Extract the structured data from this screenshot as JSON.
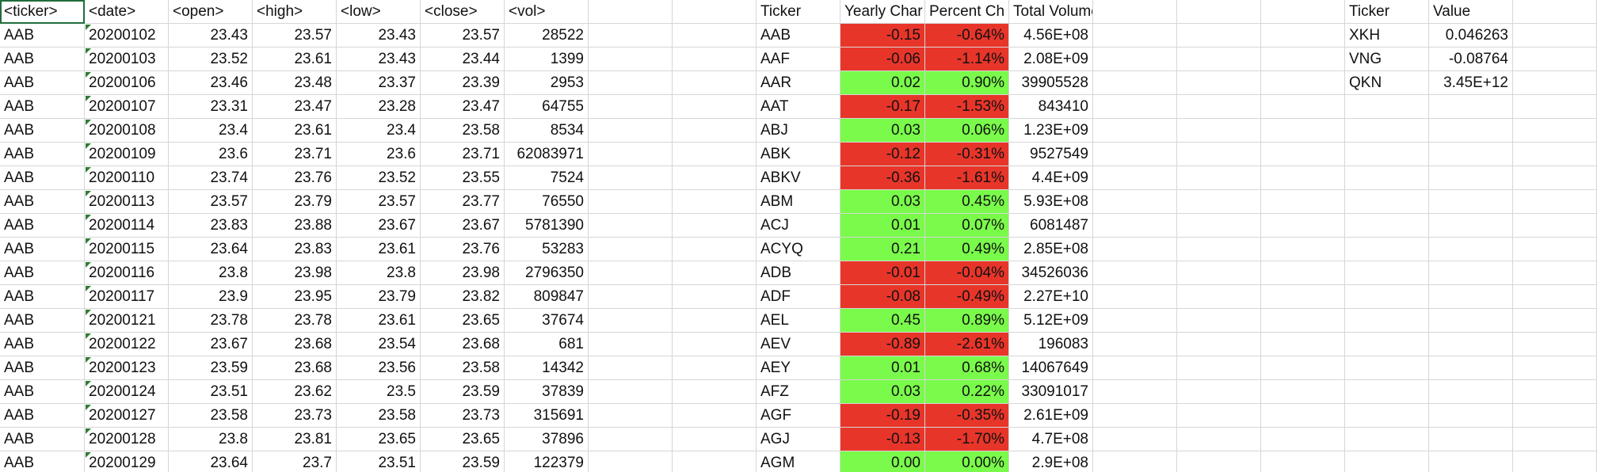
{
  "sheet": {
    "raw_headers": [
      "<ticker>",
      "<date>",
      "<open>",
      "<high>",
      "<low>",
      "<close>",
      "<vol>"
    ],
    "raw_rows": [
      [
        "AAB",
        "20200102",
        "23.43",
        "23.57",
        "23.43",
        "23.57",
        "28522"
      ],
      [
        "AAB",
        "20200103",
        "23.52",
        "23.61",
        "23.43",
        "23.44",
        "1399"
      ],
      [
        "AAB",
        "20200106",
        "23.46",
        "23.48",
        "23.37",
        "23.39",
        "2953"
      ],
      [
        "AAB",
        "20200107",
        "23.31",
        "23.47",
        "23.28",
        "23.47",
        "64755"
      ],
      [
        "AAB",
        "20200108",
        "23.4",
        "23.61",
        "23.4",
        "23.58",
        "8534"
      ],
      [
        "AAB",
        "20200109",
        "23.6",
        "23.71",
        "23.6",
        "23.71",
        "62083971"
      ],
      [
        "AAB",
        "20200110",
        "23.74",
        "23.76",
        "23.52",
        "23.55",
        "7524"
      ],
      [
        "AAB",
        "20200113",
        "23.57",
        "23.79",
        "23.57",
        "23.77",
        "76550"
      ],
      [
        "AAB",
        "20200114",
        "23.83",
        "23.88",
        "23.67",
        "23.67",
        "5781390"
      ],
      [
        "AAB",
        "20200115",
        "23.64",
        "23.83",
        "23.61",
        "23.76",
        "53283"
      ],
      [
        "AAB",
        "20200116",
        "23.8",
        "23.98",
        "23.8",
        "23.98",
        "2796350"
      ],
      [
        "AAB",
        "20200117",
        "23.9",
        "23.95",
        "23.79",
        "23.82",
        "809847"
      ],
      [
        "AAB",
        "20200121",
        "23.78",
        "23.78",
        "23.61",
        "23.65",
        "37674"
      ],
      [
        "AAB",
        "20200122",
        "23.67",
        "23.68",
        "23.54",
        "23.68",
        "681"
      ],
      [
        "AAB",
        "20200123",
        "23.59",
        "23.68",
        "23.56",
        "23.58",
        "14342"
      ],
      [
        "AAB",
        "20200124",
        "23.51",
        "23.62",
        "23.5",
        "23.59",
        "37839"
      ],
      [
        "AAB",
        "20200127",
        "23.58",
        "23.73",
        "23.58",
        "23.73",
        "315691"
      ],
      [
        "AAB",
        "20200128",
        "23.8",
        "23.81",
        "23.65",
        "23.65",
        "37896"
      ],
      [
        "AAB",
        "20200129",
        "23.64",
        "23.7",
        "23.51",
        "23.59",
        "122379"
      ]
    ],
    "summary_headers": [
      "Ticker",
      "Yearly Char",
      "Percent Ch",
      "Total Volume"
    ],
    "summary_rows": [
      {
        "ticker": "AAB",
        "yearly": "-0.15",
        "pct": "-0.64%",
        "vol": "4.56E+08",
        "status": "red"
      },
      {
        "ticker": "AAF",
        "yearly": "-0.06",
        "pct": "-1.14%",
        "vol": "2.08E+09",
        "status": "red"
      },
      {
        "ticker": "AAR",
        "yearly": "0.02",
        "pct": "0.90%",
        "vol": "39905528",
        "status": "green"
      },
      {
        "ticker": "AAT",
        "yearly": "-0.17",
        "pct": "-1.53%",
        "vol": "843410",
        "status": "red"
      },
      {
        "ticker": "ABJ",
        "yearly": "0.03",
        "pct": "0.06%",
        "vol": "1.23E+09",
        "status": "green"
      },
      {
        "ticker": "ABK",
        "yearly": "-0.12",
        "pct": "-0.31%",
        "vol": "9527549",
        "status": "red"
      },
      {
        "ticker": "ABKV",
        "yearly": "-0.36",
        "pct": "-1.61%",
        "vol": "4.4E+09",
        "status": "red"
      },
      {
        "ticker": "ABM",
        "yearly": "0.03",
        "pct": "0.45%",
        "vol": "5.93E+08",
        "status": "green"
      },
      {
        "ticker": "ACJ",
        "yearly": "0.01",
        "pct": "0.07%",
        "vol": "6081487",
        "status": "green"
      },
      {
        "ticker": "ACYQ",
        "yearly": "0.21",
        "pct": "0.49%",
        "vol": "2.85E+08",
        "status": "green"
      },
      {
        "ticker": "ADB",
        "yearly": "-0.01",
        "pct": "-0.04%",
        "vol": "34526036",
        "status": "red"
      },
      {
        "ticker": "ADF",
        "yearly": "-0.08",
        "pct": "-0.49%",
        "vol": "2.27E+10",
        "status": "red"
      },
      {
        "ticker": "AEL",
        "yearly": "0.45",
        "pct": "0.89%",
        "vol": "5.12E+09",
        "status": "green"
      },
      {
        "ticker": "AEV",
        "yearly": "-0.89",
        "pct": "-2.61%",
        "vol": "196083",
        "status": "red"
      },
      {
        "ticker": "AEY",
        "yearly": "0.01",
        "pct": "0.68%",
        "vol": "14067649",
        "status": "green"
      },
      {
        "ticker": "AFZ",
        "yearly": "0.03",
        "pct": "0.22%",
        "vol": "33091017",
        "status": "green"
      },
      {
        "ticker": "AGF",
        "yearly": "-0.19",
        "pct": "-0.35%",
        "vol": "2.61E+09",
        "status": "red"
      },
      {
        "ticker": "AGJ",
        "yearly": "-0.13",
        "pct": "-1.70%",
        "vol": "4.7E+08",
        "status": "red"
      },
      {
        "ticker": "AGM",
        "yearly": "0.00",
        "pct": "0.00%",
        "vol": "2.9E+08",
        "status": "green"
      }
    ],
    "greatest_headers": [
      "Ticker",
      "Value"
    ],
    "greatest_rows": [
      {
        "ticker": "XKH",
        "value": "0.046263"
      },
      {
        "ticker": "VNG",
        "value": "-0.08764"
      },
      {
        "ticker": "QKN",
        "value": "3.45E+12"
      }
    ]
  },
  "colors": {
    "negative": "#e8352a",
    "positive": "#7afa4a",
    "selection": "#1f6e3b",
    "gridline": "#d6d6d6"
  }
}
